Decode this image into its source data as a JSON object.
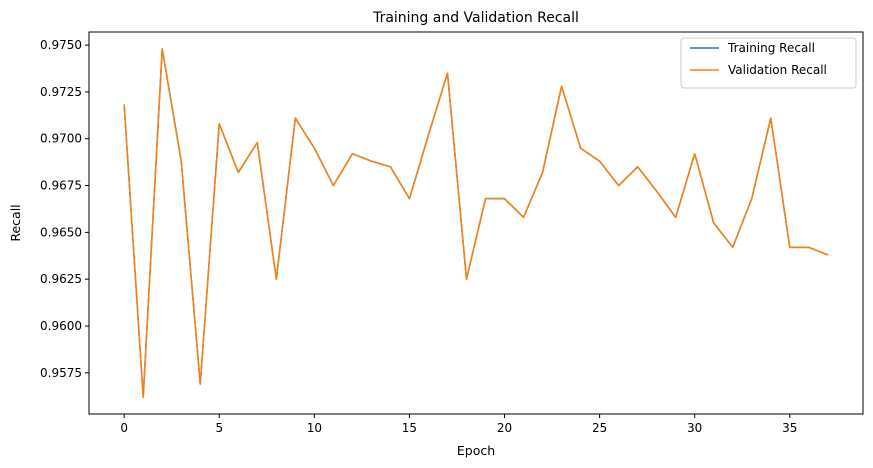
{
  "chart_data": {
    "type": "line",
    "title": "Training and Validation Recall",
    "xlabel": "Epoch",
    "ylabel": "Recall",
    "xlim": [
      -1.85,
      38.85
    ],
    "ylim": [
      0.9553,
      0.9757
    ],
    "xticks": [
      0,
      5,
      10,
      15,
      20,
      25,
      30,
      35
    ],
    "yticks": [
      0.9575,
      0.96,
      0.9625,
      0.965,
      0.9675,
      0.97,
      0.9725,
      0.975
    ],
    "ytick_labels": [
      "0.9575",
      "0.9600",
      "0.9625",
      "0.9650",
      "0.9675",
      "0.9700",
      "0.9725",
      "0.9750"
    ],
    "grid": false,
    "legend_position": "top-right",
    "x": [
      0,
      1,
      2,
      3,
      4,
      5,
      6,
      7,
      8,
      9,
      10,
      11,
      12,
      13,
      14,
      15,
      16,
      17,
      18,
      19,
      20,
      21,
      22,
      23,
      24,
      25,
      26,
      27,
      28,
      29,
      30,
      31,
      32,
      33,
      34,
      35,
      36,
      37
    ],
    "series": [
      {
        "name": "Training Recall",
        "color": "#1f77b4",
        "values": [
          0.9718,
          0.9562,
          0.9748,
          0.9688,
          0.9569,
          0.9708,
          0.9682,
          0.9698,
          0.9625,
          0.9711,
          0.9695,
          0.9675,
          0.9692,
          0.9688,
          0.9685,
          0.9668,
          0.9702,
          0.9735,
          0.9625,
          0.9668,
          0.9668,
          0.9658,
          0.9682,
          0.9728,
          0.9695,
          0.9688,
          0.9675,
          0.9685,
          0.9672,
          0.9658,
          0.9692,
          0.9655,
          0.9642,
          0.9668,
          0.9711,
          0.9642,
          0.9642,
          0.9638
        ]
      },
      {
        "name": "Validation Recall",
        "color": "#ff7f0e",
        "values": [
          0.9718,
          0.9562,
          0.9748,
          0.9688,
          0.9569,
          0.9708,
          0.9682,
          0.9698,
          0.9625,
          0.9711,
          0.9695,
          0.9675,
          0.9692,
          0.9688,
          0.9685,
          0.9668,
          0.9702,
          0.9735,
          0.9625,
          0.9668,
          0.9668,
          0.9658,
          0.9682,
          0.9728,
          0.9695,
          0.9688,
          0.9675,
          0.9685,
          0.9672,
          0.9658,
          0.9692,
          0.9655,
          0.9642,
          0.9668,
          0.9711,
          0.9642,
          0.9642,
          0.9638
        ]
      }
    ]
  }
}
